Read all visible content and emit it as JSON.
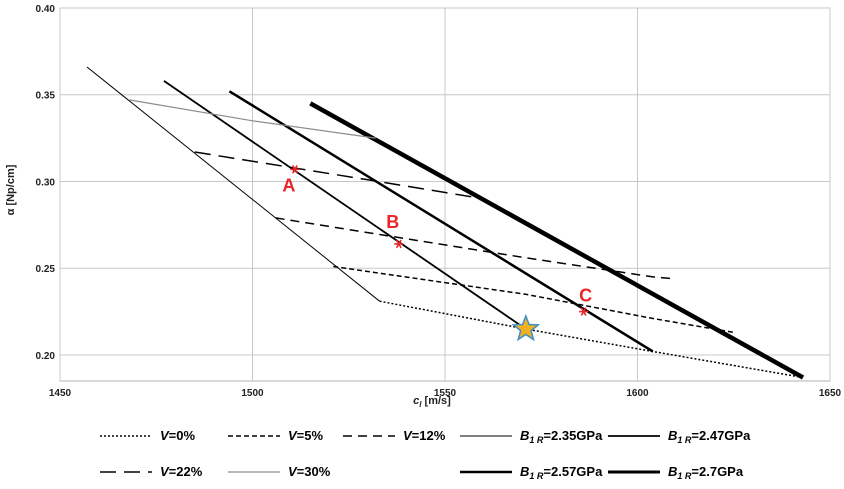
{
  "chart_data": {
    "type": "line",
    "xlabel_main": "c",
    "xlabel_sub": "l",
    "xlabel_unit": "[m/s]",
    "ylabel": "α [Np/cm]",
    "xlim": [
      1450,
      1650
    ],
    "ylim": [
      0.185,
      0.4
    ],
    "xticks": [
      1450,
      1500,
      1550,
      1600,
      1650
    ],
    "xtick_labels": [
      "1450",
      "1500",
      "1550",
      "1600",
      "1650"
    ],
    "yticks": [
      0.2,
      0.25,
      0.3,
      0.35,
      0.4
    ],
    "ytick_labels": [
      "0.20",
      "0.25",
      "0.30",
      "0.35",
      "0.40"
    ],
    "grid": true,
    "legend_position": "bottom",
    "series": [
      {
        "name": "B1R=2.35GPa",
        "legend": {
          "sym": "B",
          "sub": "1 R",
          "value": "=2.35GPa"
        },
        "style": "solid",
        "width": 1.0,
        "color": "#000000",
        "x": [
          1457,
          1533
        ],
        "y": [
          0.366,
          0.231
        ]
      },
      {
        "name": "B1R=2.47GPa",
        "legend": {
          "sym": "B",
          "sub": "1 R",
          "value": "=2.47GPa"
        },
        "style": "solid",
        "width": 1.8,
        "color": "#000000",
        "x": [
          1477,
          1571
        ],
        "y": [
          0.358,
          0.215
        ]
      },
      {
        "name": "B1R=2.57GPa",
        "legend": {
          "sym": "B",
          "sub": "1 R",
          "value": "=2.57GPa"
        },
        "style": "solid",
        "width": 2.5,
        "color": "#000000",
        "x": [
          1494,
          1604
        ],
        "y": [
          0.352,
          0.202
        ]
      },
      {
        "name": "B1R=2.7GPa",
        "legend": {
          "sym": "B",
          "sub": "1 R",
          "value": "=2.7GPa"
        },
        "style": "solid",
        "width": 4.5,
        "color": "#000000",
        "x": [
          1515,
          1643
        ],
        "y": [
          0.345,
          0.187
        ]
      },
      {
        "name": "V=0%",
        "legend": {
          "sym": "V",
          "value": "=0%"
        },
        "style": "dotted",
        "width": 1.5,
        "color": "#000000",
        "x": [
          1533,
          1571,
          1604,
          1643
        ],
        "y": [
          0.231,
          0.215,
          0.202,
          0.187
        ]
      },
      {
        "name": "V=5%",
        "legend": {
          "sym": "V",
          "value": "=5%"
        },
        "style": "short-dash",
        "width": 1.5,
        "color": "#000000",
        "x": [
          1521,
          1571,
          1604,
          1625
        ],
        "y": [
          0.251,
          0.235,
          0.221,
          0.213
        ]
      },
      {
        "name": "V=12%",
        "legend": {
          "sym": "V",
          "value": "=12%"
        },
        "style": "medium-dash",
        "width": 1.5,
        "color": "#000000",
        "x": [
          1506,
          1571,
          1604,
          1609
        ],
        "y": [
          0.279,
          0.256,
          0.245,
          0.244
        ]
      },
      {
        "name": "V=22%",
        "legend": {
          "sym": "V",
          "value": "=22%"
        },
        "style": "long-dash",
        "width": 1.5,
        "color": "#000000",
        "x": [
          1485,
          1530,
          1560
        ],
        "y": [
          0.317,
          0.301,
          0.29
        ]
      },
      {
        "name": "V=30%",
        "legend": {
          "sym": "V",
          "value": "=30%"
        },
        "style": "solid",
        "width": 1.2,
        "color": "#8c8c8c",
        "x": [
          1468,
          1500,
          1532
        ],
        "y": [
          0.347,
          0.335,
          0.325
        ]
      }
    ],
    "points": [
      {
        "label": "A",
        "x": 1511,
        "y": 0.307,
        "marker": "asterisk",
        "color": "#e8262b",
        "label_dx": -6,
        "label_dy": 18
      },
      {
        "label": "B",
        "x": 1538,
        "y": 0.264,
        "marker": "asterisk",
        "color": "#e8262b",
        "label_dx": -6,
        "label_dy": -16
      },
      {
        "label": "C",
        "x": 1586,
        "y": 0.225,
        "marker": "asterisk",
        "color": "#e8262b",
        "label_dx": 2,
        "label_dy": -10
      },
      {
        "label": "",
        "x": 1571,
        "y": 0.215,
        "marker": "star",
        "color": "#f0b020",
        "stroke": "#3f8ec6"
      }
    ]
  }
}
